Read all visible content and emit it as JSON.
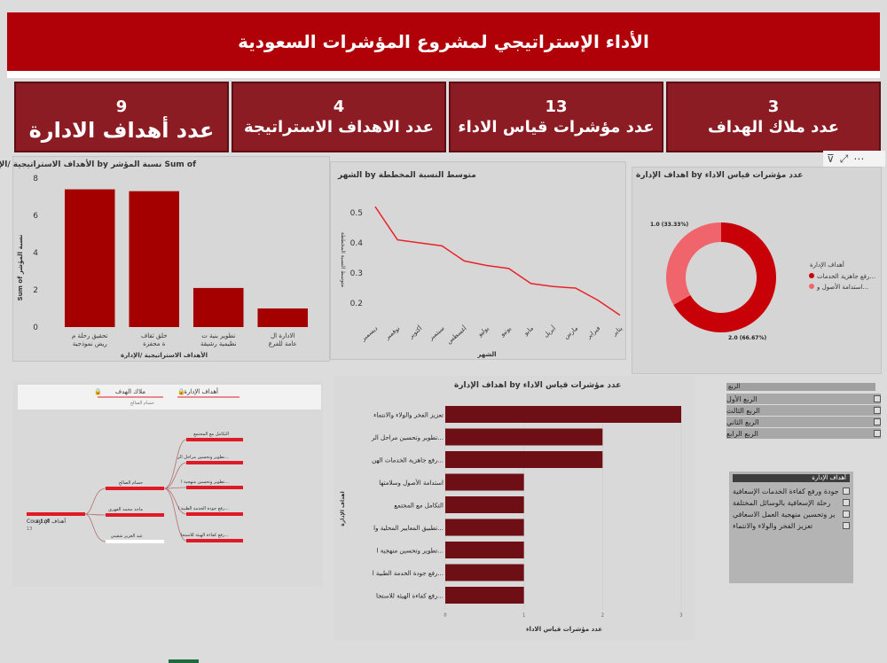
{
  "header": {
    "title": "الأداء الإستراتيجي لمشروع المؤشرات السعودية"
  },
  "kpis": [
    {
      "value": "9",
      "label": "عدد أهداف الادارة"
    },
    {
      "value": "4",
      "label": "عدد الاهداف الاستراتيجة"
    },
    {
      "value": "13",
      "label": "عدد مؤشرات قياس الاداء"
    },
    {
      "value": "3",
      "label": "عدد ملاك الهداف"
    }
  ],
  "bar_panel": {
    "title": "الأهداف الاستراتيجية /الإدارة by نسبة المؤشر Sum of",
    "ylabel": "Sum of نسبة المؤشر",
    "xlabel": "الأهداف الاستراتيجية /الإدارة"
  },
  "line_panel": {
    "title": "الشهر by متوسط النسبة المخططة",
    "ylabel": "متوسط النسبة المخططة",
    "xlabel": "الشهر"
  },
  "donut_panel": {
    "title": "اهداف الإدارة by عدد مؤشرات قياس الاداء",
    "legend_title": "أهداف الإدارة",
    "legend_items": [
      "رفع جاهزية الخدمات...",
      "استدامة الأصول و..."
    ],
    "label_a": "1.0 (33.33%)",
    "label_b": "2.0 (66.67%)"
  },
  "tree_panel": {
    "header_left": "ملاك الهدف",
    "header_left_sub": "حسام الصالح",
    "header_right": "أهداف الإدارة",
    "root_label": "أهداف الإدارة",
    "root_sub": "Count of",
    "root_value": "13",
    "owners": [
      "حسام الصالح",
      "ماجد محمد الفهري",
      "عبد العزيز شقيني"
    ],
    "leaves": [
      "التكامل مع المجتمع",
      "تطوير وتحسين مراحل الر...",
      "تطوير وتحسين منهجية ا...",
      "رفع جودة الخدمة الطبية ا...",
      "رفع كفاءة الهيئة للاستجا..."
    ]
  },
  "hbar_panel": {
    "title": "اهداف الإدارة by عدد مؤشرات قياس الاداء",
    "ylabel": "اهداف الإدارة",
    "xlabel": "عدد مؤشرات قياس الاداء"
  },
  "slicer_quarter": {
    "title": "الربع",
    "items": [
      "الربع الأول",
      "الربع الثالث",
      "الربع الثاني",
      "الربع الرابع"
    ]
  },
  "slicer_goals": {
    "title": "أهداف الإدارة",
    "items": [
      "جودة ورفع كفاءة الخدمات الإسعافية",
      "رحلة الإسعافية بالوسائل المختلفة",
      "ير وتحسين منهجية العمل الاسعافي",
      "تعزيز الفخر والولاء والانتماء"
    ]
  },
  "colors": {
    "brand": "#b00008",
    "kpi": "#8c1c24",
    "bar": "#a50000",
    "line": "#e8232a",
    "donut_a": "#c80008",
    "donut_b": "#f0656c",
    "hbar": "#6d0f14"
  },
  "chart_data": [
    {
      "type": "bar",
      "categories": [
        "تحقيق رحلة مريض نموذجية",
        "خلق ثقافة محفزة",
        "تطوير بنية تنظيمية رشيقة",
        "الادارة العامة للفرع"
      ],
      "values": [
        7.4,
        7.3,
        2.1,
        1.0
      ],
      "ylim": [
        0,
        8
      ],
      "yticks": [
        0,
        2,
        4,
        6,
        8
      ]
    },
    {
      "type": "line",
      "x": [
        "يناير",
        "فبراير",
        "مارس",
        "أبريل",
        "مايو",
        "يونيو",
        "يوليو",
        "أغسطس",
        "سبتمبر",
        "أكتوبر",
        "نوفمبر",
        "ديسمبر"
      ],
      "values": [
        0.16,
        0.21,
        0.25,
        0.255,
        0.265,
        0.315,
        0.325,
        0.34,
        0.39,
        0.4,
        0.41,
        0.52
      ],
      "ylim": [
        0.15,
        0.55
      ],
      "yticks": [
        0.2,
        0.3,
        0.4,
        0.5
      ]
    },
    {
      "type": "pie",
      "labels": [
        "رفع جاهزية الخدمات...",
        "استدامة الأصول و..."
      ],
      "values": [
        2,
        1
      ]
    },
    {
      "type": "bar",
      "orientation": "horizontal",
      "categories": [
        "تعزيز الفخر والولاء والانتماء",
        "تطوير وتحسين مراحل الر...",
        "رفع جاهزية الخدمات الهن...",
        "استدامة الأصول وسلامتها",
        "التكامل مع المجتمع",
        "تطبيق المعايير المحلية وا...",
        "تطوير وتحسين منهجية ا...",
        "رفع جودة الخدمة الطبية ا...",
        "رفع كفاءة الهيئة للاستجا..."
      ],
      "values": [
        3,
        2,
        2,
        1,
        1,
        1,
        1,
        1,
        1
      ],
      "xlim": [
        0,
        3
      ],
      "xticks": [
        0,
        1,
        2,
        3
      ]
    }
  ]
}
